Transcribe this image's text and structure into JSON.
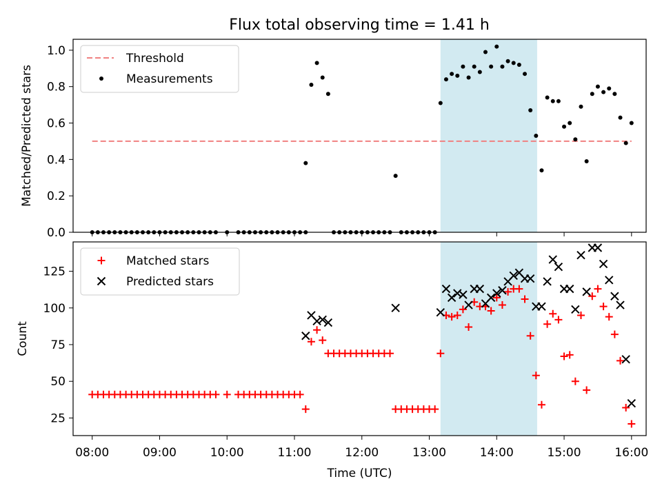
{
  "title": "Flux total observing time = 1.41 h",
  "colors": {
    "threshold": "#f08080",
    "measurement": "#000000",
    "matched": "#ff0000",
    "predicted": "#000000",
    "highlight": "#add8e6"
  },
  "chart_data": [
    {
      "type": "scatter",
      "ylabel": "Matched/Predicted stars",
      "ylim": [
        0,
        1.06
      ],
      "yticks": [
        "0.0",
        "0.2",
        "0.4",
        "0.6",
        "0.8",
        "1.0"
      ],
      "xlim": [
        "07:43",
        "16:13"
      ],
      "highlight_span": [
        "13:10",
        "14:36"
      ],
      "legend": {
        "position": "upper-left",
        "entries": [
          "Threshold",
          "Measurements"
        ]
      },
      "series": [
        {
          "name": "Threshold",
          "kind": "dashed-line",
          "x": [
            "08:00",
            "16:00"
          ],
          "y": [
            0.5,
            0.5
          ]
        },
        {
          "name": "Measurements",
          "kind": "dots",
          "points": [
            [
              "08:00",
              0
            ],
            [
              "08:05",
              0
            ],
            [
              "08:10",
              0
            ],
            [
              "08:15",
              0
            ],
            [
              "08:20",
              0
            ],
            [
              "08:25",
              0
            ],
            [
              "08:30",
              0
            ],
            [
              "08:35",
              0
            ],
            [
              "08:40",
              0
            ],
            [
              "08:45",
              0
            ],
            [
              "08:50",
              0
            ],
            [
              "08:55",
              0
            ],
            [
              "09:00",
              0
            ],
            [
              "09:05",
              0
            ],
            [
              "09:10",
              0
            ],
            [
              "09:15",
              0
            ],
            [
              "09:20",
              0
            ],
            [
              "09:25",
              0
            ],
            [
              "09:30",
              0
            ],
            [
              "09:35",
              0
            ],
            [
              "09:40",
              0
            ],
            [
              "09:45",
              0
            ],
            [
              "09:50",
              0
            ],
            [
              "10:00",
              0
            ],
            [
              "10:10",
              0
            ],
            [
              "10:15",
              0
            ],
            [
              "10:20",
              0
            ],
            [
              "10:25",
              0
            ],
            [
              "10:30",
              0
            ],
            [
              "10:35",
              0
            ],
            [
              "10:40",
              0
            ],
            [
              "10:45",
              0
            ],
            [
              "10:50",
              0
            ],
            [
              "10:55",
              0
            ],
            [
              "11:00",
              0
            ],
            [
              "11:05",
              0
            ],
            [
              "11:10",
              0
            ],
            [
              "11:10",
              0.38
            ],
            [
              "11:15",
              0.81
            ],
            [
              "11:20",
              0.93
            ],
            [
              "11:25",
              0.85
            ],
            [
              "11:30",
              0.76
            ],
            [
              "11:35",
              0
            ],
            [
              "11:40",
              0
            ],
            [
              "11:45",
              0
            ],
            [
              "11:50",
              0
            ],
            [
              "11:55",
              0
            ],
            [
              "12:00",
              0
            ],
            [
              "12:05",
              0
            ],
            [
              "12:10",
              0
            ],
            [
              "12:15",
              0
            ],
            [
              "12:20",
              0
            ],
            [
              "12:25",
              0
            ],
            [
              "12:30",
              0.31
            ],
            [
              "12:35",
              0
            ],
            [
              "12:40",
              0
            ],
            [
              "12:45",
              0
            ],
            [
              "12:50",
              0
            ],
            [
              "12:55",
              0
            ],
            [
              "13:00",
              0
            ],
            [
              "13:05",
              0
            ],
            [
              "13:10",
              0.71
            ],
            [
              "13:15",
              0.84
            ],
            [
              "13:20",
              0.87
            ],
            [
              "13:25",
              0.86
            ],
            [
              "13:30",
              0.91
            ],
            [
              "13:35",
              0.85
            ],
            [
              "13:40",
              0.91
            ],
            [
              "13:45",
              0.88
            ],
            [
              "13:50",
              0.99
            ],
            [
              "13:55",
              0.91
            ],
            [
              "14:00",
              1.02
            ],
            [
              "14:05",
              0.91
            ],
            [
              "14:10",
              0.94
            ],
            [
              "14:15",
              0.93
            ],
            [
              "14:20",
              0.92
            ],
            [
              "14:25",
              0.87
            ],
            [
              "14:30",
              0.67
            ],
            [
              "14:35",
              0.53
            ],
            [
              "14:40",
              0.34
            ],
            [
              "14:45",
              0.74
            ],
            [
              "14:50",
              0.72
            ],
            [
              "14:55",
              0.72
            ],
            [
              "15:00",
              0.58
            ],
            [
              "15:05",
              0.6
            ],
            [
              "15:10",
              0.51
            ],
            [
              "15:15",
              0.69
            ],
            [
              "15:20",
              0.39
            ],
            [
              "15:25",
              0.76
            ],
            [
              "15:30",
              0.8
            ],
            [
              "15:35",
              0.77
            ],
            [
              "15:40",
              0.79
            ],
            [
              "15:45",
              0.76
            ],
            [
              "15:50",
              0.63
            ],
            [
              "15:55",
              0.49
            ],
            [
              "16:00",
              0.6
            ]
          ]
        }
      ]
    },
    {
      "type": "scatter",
      "ylabel": "Count",
      "xlabel": "Time (UTC)",
      "ylim": [
        13,
        145
      ],
      "yticks": [
        "25",
        "50",
        "75",
        "100",
        "125"
      ],
      "xticks": [
        "08:00",
        "09:00",
        "10:00",
        "11:00",
        "12:00",
        "13:00",
        "14:00",
        "15:00",
        "16:00"
      ],
      "xlim": [
        "07:43",
        "16:13"
      ],
      "highlight_span": [
        "13:10",
        "14:36"
      ],
      "legend": {
        "position": "upper-left",
        "entries": [
          "Matched stars",
          "Predicted stars"
        ]
      },
      "series": [
        {
          "name": "Matched stars",
          "kind": "plus",
          "points": [
            [
              "08:00",
              41
            ],
            [
              "08:05",
              41
            ],
            [
              "08:10",
              41
            ],
            [
              "08:15",
              41
            ],
            [
              "08:20",
              41
            ],
            [
              "08:25",
              41
            ],
            [
              "08:30",
              41
            ],
            [
              "08:35",
              41
            ],
            [
              "08:40",
              41
            ],
            [
              "08:45",
              41
            ],
            [
              "08:50",
              41
            ],
            [
              "08:55",
              41
            ],
            [
              "09:00",
              41
            ],
            [
              "09:05",
              41
            ],
            [
              "09:10",
              41
            ],
            [
              "09:15",
              41
            ],
            [
              "09:20",
              41
            ],
            [
              "09:25",
              41
            ],
            [
              "09:30",
              41
            ],
            [
              "09:35",
              41
            ],
            [
              "09:40",
              41
            ],
            [
              "09:45",
              41
            ],
            [
              "09:50",
              41
            ],
            [
              "10:00",
              41
            ],
            [
              "10:10",
              41
            ],
            [
              "10:15",
              41
            ],
            [
              "10:20",
              41
            ],
            [
              "10:25",
              41
            ],
            [
              "10:30",
              41
            ],
            [
              "10:35",
              41
            ],
            [
              "10:40",
              41
            ],
            [
              "10:45",
              41
            ],
            [
              "10:50",
              41
            ],
            [
              "10:55",
              41
            ],
            [
              "11:00",
              41
            ],
            [
              "11:05",
              41
            ],
            [
              "11:10",
              31
            ],
            [
              "11:15",
              77
            ],
            [
              "11:20",
              85
            ],
            [
              "11:25",
              78
            ],
            [
              "11:30",
              69
            ],
            [
              "11:35",
              69
            ],
            [
              "11:40",
              69
            ],
            [
              "11:45",
              69
            ],
            [
              "11:50",
              69
            ],
            [
              "11:55",
              69
            ],
            [
              "12:00",
              69
            ],
            [
              "12:05",
              69
            ],
            [
              "12:10",
              69
            ],
            [
              "12:15",
              69
            ],
            [
              "12:20",
              69
            ],
            [
              "12:25",
              69
            ],
            [
              "12:30",
              31
            ],
            [
              "12:35",
              31
            ],
            [
              "12:40",
              31
            ],
            [
              "12:45",
              31
            ],
            [
              "12:50",
              31
            ],
            [
              "12:55",
              31
            ],
            [
              "13:00",
              31
            ],
            [
              "13:05",
              31
            ],
            [
              "13:10",
              69
            ],
            [
              "13:15",
              95
            ],
            [
              "13:20",
              94
            ],
            [
              "13:25",
              95
            ],
            [
              "13:30",
              99
            ],
            [
              "13:35",
              87
            ],
            [
              "13:40",
              104
            ],
            [
              "13:45",
              101
            ],
            [
              "13:50",
              101
            ],
            [
              "13:55",
              98
            ],
            [
              "14:00",
              107
            ],
            [
              "14:05",
              102
            ],
            [
              "14:10",
              111
            ],
            [
              "14:15",
              113
            ],
            [
              "14:20",
              113
            ],
            [
              "14:25",
              106
            ],
            [
              "14:30",
              81
            ],
            [
              "14:35",
              54
            ],
            [
              "14:40",
              34
            ],
            [
              "14:45",
              89
            ],
            [
              "14:50",
              96
            ],
            [
              "14:55",
              92
            ],
            [
              "15:00",
              67
            ],
            [
              "15:05",
              68
            ],
            [
              "15:10",
              50
            ],
            [
              "15:15",
              95
            ],
            [
              "15:20",
              44
            ],
            [
              "15:25",
              108
            ],
            [
              "15:30",
              113
            ],
            [
              "15:35",
              101
            ],
            [
              "15:40",
              94
            ],
            [
              "15:45",
              82
            ],
            [
              "15:50",
              64
            ],
            [
              "15:55",
              32
            ],
            [
              "16:00",
              21
            ]
          ]
        },
        {
          "name": "Predicted stars",
          "kind": "cross",
          "points": [
            [
              "11:10",
              81
            ],
            [
              "11:15",
              95
            ],
            [
              "11:20",
              91
            ],
            [
              "11:25",
              92
            ],
            [
              "11:30",
              90
            ],
            [
              "12:30",
              100
            ],
            [
              "13:10",
              97
            ],
            [
              "13:15",
              113
            ],
            [
              "13:20",
              107
            ],
            [
              "13:25",
              110
            ],
            [
              "13:30",
              109
            ],
            [
              "13:35",
              102
            ],
            [
              "13:40",
              113
            ],
            [
              "13:45",
              113
            ],
            [
              "13:50",
              103
            ],
            [
              "13:55",
              107
            ],
            [
              "14:00",
              110
            ],
            [
              "14:05",
              112
            ],
            [
              "14:10",
              118
            ],
            [
              "14:15",
              122
            ],
            [
              "14:20",
              124
            ],
            [
              "14:25",
              120
            ],
            [
              "14:30",
              120
            ],
            [
              "14:35",
              101
            ],
            [
              "14:40",
              101
            ],
            [
              "14:45",
              118
            ],
            [
              "14:50",
              133
            ],
            [
              "14:55",
              128
            ],
            [
              "15:00",
              113
            ],
            [
              "15:05",
              113
            ],
            [
              "15:10",
              99
            ],
            [
              "15:15",
              136
            ],
            [
              "15:20",
              111
            ],
            [
              "15:25",
              141
            ],
            [
              "15:30",
              141
            ],
            [
              "15:35",
              130
            ],
            [
              "15:40",
              119
            ],
            [
              "15:45",
              108
            ],
            [
              "15:50",
              102
            ],
            [
              "15:55",
              65
            ],
            [
              "16:00",
              35
            ]
          ]
        }
      ]
    }
  ]
}
